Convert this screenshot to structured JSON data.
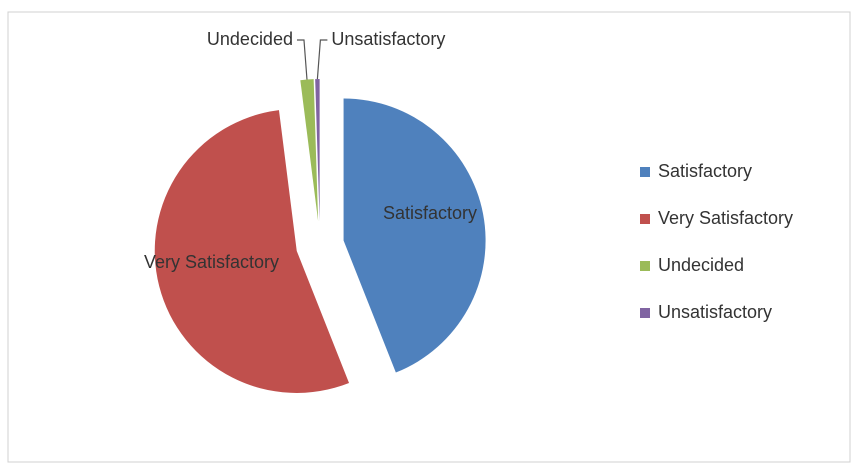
{
  "chart_data": {
    "type": "pie",
    "categories": [
      "Satisfactory",
      "Very Satisfactory",
      "Undecided",
      "Unsatisfactory"
    ],
    "values": [
      44,
      54,
      1.5,
      0.5
    ],
    "colors": [
      "#4f81bd",
      "#c0504d",
      "#9bbb59",
      "#8064a2"
    ],
    "legend": "right"
  }
}
